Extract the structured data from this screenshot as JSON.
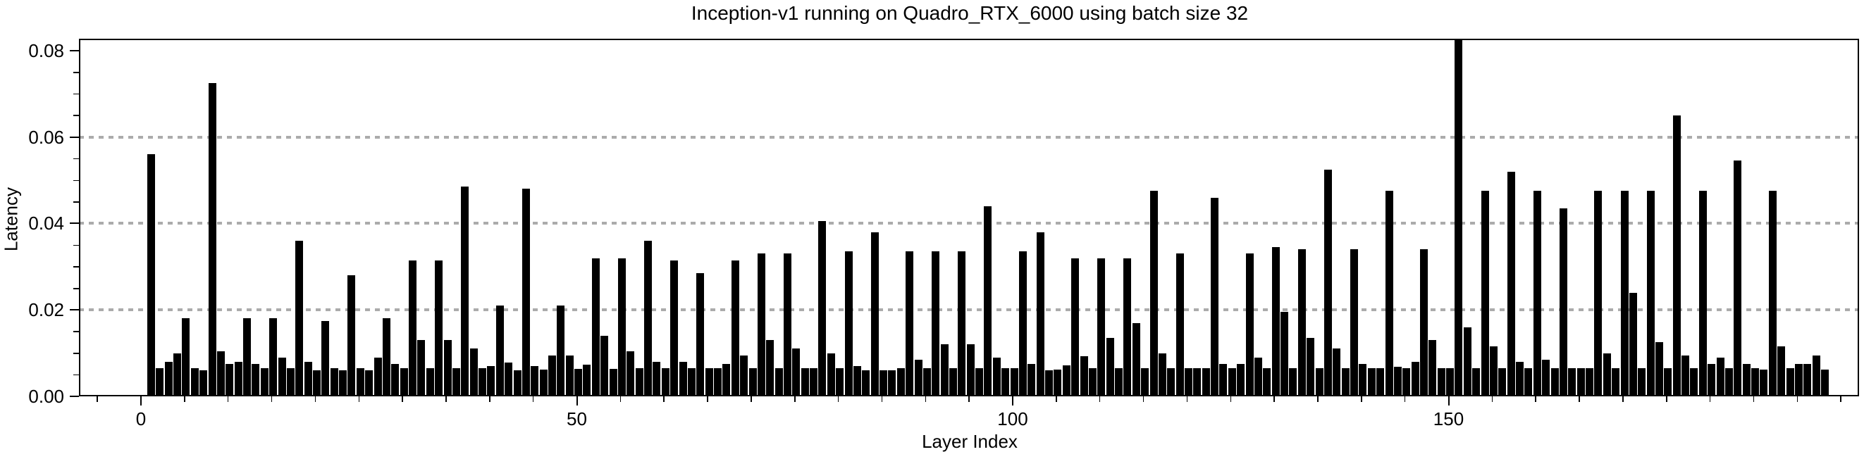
{
  "page": {
    "background_color": "#ffffff",
    "accent_color": "#000000"
  },
  "chart_data": {
    "type": "bar",
    "title": "Inception-v1 running on Quadro_RTX_6000 using batch size 32",
    "xlabel": "Layer Index",
    "ylabel": "Latency",
    "bar_color": "#000000",
    "grid_color": "#ababab",
    "axis_color": "#000000",
    "background_color": "#ffffff",
    "legend": "none",
    "grid": "horizontal-dotted",
    "gridlines_y": [
      0.02,
      0.04,
      0.06
    ],
    "ylim": [
      0.0,
      0.0827
    ],
    "xlim": [
      -7.1,
      197.2
    ],
    "y_tick_labels": [
      "0.00",
      "0.02",
      "0.04",
      "0.06",
      "0.08"
    ],
    "y_ticks_major": [
      0.0,
      0.02,
      0.04,
      0.06,
      0.08
    ],
    "y_minor_tick_step": 0.005,
    "x_tick_labels": [
      "0",
      "50",
      "100",
      "150"
    ],
    "x_ticks_major": [
      0,
      50,
      100,
      150
    ],
    "x_minor_tick_step": 5,
    "first_layer_index": 1,
    "values": [
      0.056,
      0.0065,
      0.008,
      0.01,
      0.018,
      0.0065,
      0.006,
      0.0725,
      0.0105,
      0.0075,
      0.008,
      0.018,
      0.0075,
      0.0065,
      0.018,
      0.009,
      0.0065,
      0.036,
      0.008,
      0.006,
      0.0175,
      0.0065,
      0.006,
      0.028,
      0.0065,
      0.006,
      0.009,
      0.018,
      0.0075,
      0.0065,
      0.0315,
      0.013,
      0.0065,
      0.0315,
      0.013,
      0.0065,
      0.0485,
      0.011,
      0.0065,
      0.007,
      0.021,
      0.0078,
      0.006,
      0.048,
      0.007,
      0.0062,
      0.0094,
      0.021,
      0.0094,
      0.0063,
      0.0074,
      0.032,
      0.014,
      0.0064,
      0.032,
      0.0105,
      0.0065,
      0.036,
      0.008,
      0.0065,
      0.0315,
      0.008,
      0.0065,
      0.0285,
      0.0065,
      0.0065,
      0.0075,
      0.0315,
      0.0095,
      0.0065,
      0.033,
      0.013,
      0.0065,
      0.033,
      0.011,
      0.0065,
      0.0065,
      0.0405,
      0.01,
      0.0065,
      0.0335,
      0.007,
      0.006,
      0.038,
      0.006,
      0.006,
      0.0065,
      0.0335,
      0.0085,
      0.0065,
      0.0335,
      0.012,
      0.0065,
      0.0335,
      0.012,
      0.0065,
      0.044,
      0.009,
      0.0065,
      0.0065,
      0.0335,
      0.0075,
      0.038,
      0.0061,
      0.0062,
      0.0072,
      0.032,
      0.0093,
      0.0065,
      0.032,
      0.0135,
      0.0065,
      0.032,
      0.017,
      0.0065,
      0.0475,
      0.01,
      0.0065,
      0.033,
      0.0065,
      0.0065,
      0.0065,
      0.046,
      0.0075,
      0.0065,
      0.0075,
      0.033,
      0.009,
      0.0065,
      0.0345,
      0.0195,
      0.0065,
      0.034,
      0.0135,
      0.0065,
      0.0525,
      0.011,
      0.0065,
      0.034,
      0.0075,
      0.0065,
      0.0065,
      0.0475,
      0.0068,
      0.0065,
      0.008,
      0.034,
      0.013,
      0.0065,
      0.0065,
      0.083,
      0.016,
      0.0065,
      0.0475,
      0.0115,
      0.0065,
      0.052,
      0.008,
      0.0065,
      0.0475,
      0.0085,
      0.0065,
      0.0435,
      0.0065,
      0.0065,
      0.0065,
      0.0475,
      0.01,
      0.0065,
      0.0475,
      0.024,
      0.0065,
      0.0475,
      0.0125,
      0.0065,
      0.065,
      0.0095,
      0.0065,
      0.0475,
      0.0075,
      0.009,
      0.0065,
      0.0545,
      0.0075,
      0.0065,
      0.0062,
      0.0475,
      0.0115,
      0.0065,
      0.0075,
      0.0075,
      0.0095,
      0.0062
    ]
  }
}
